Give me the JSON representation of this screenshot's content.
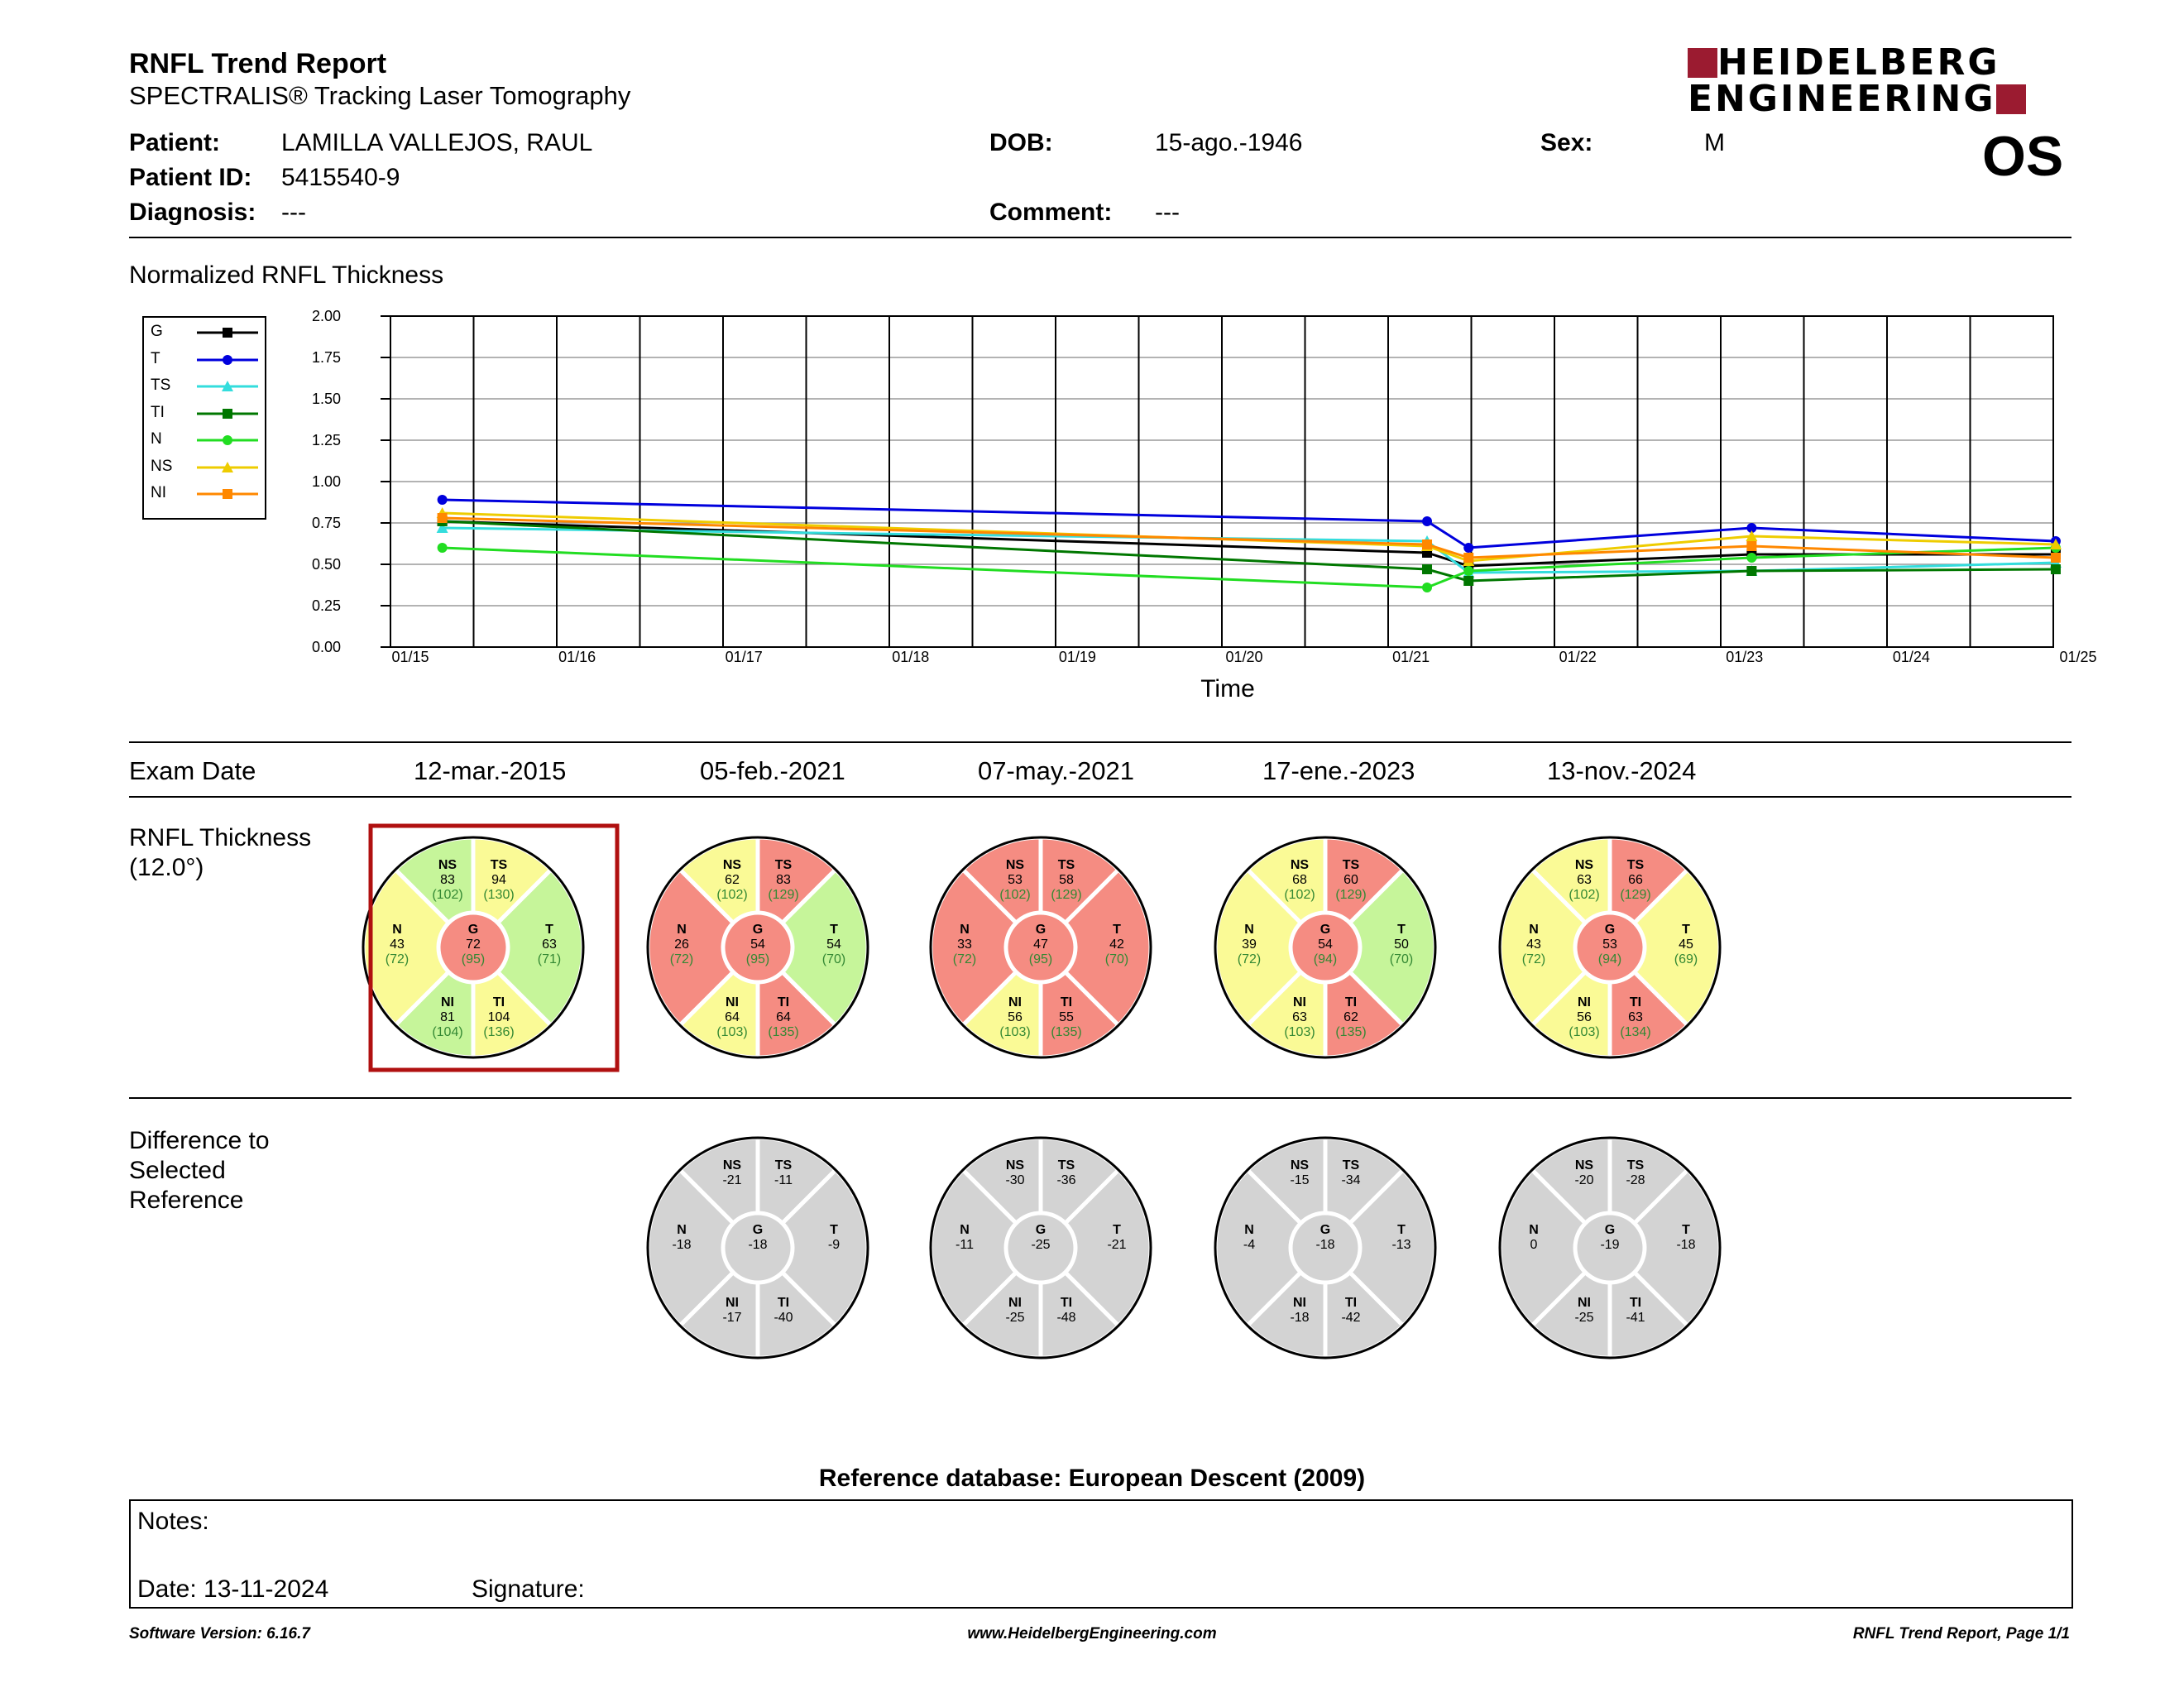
{
  "header": {
    "title": "RNFL Trend Report",
    "subtitle": "SPECTRALIS® Tracking Laser Tomography",
    "logo_line1": "HEIDELBERG",
    "logo_line2": "ENGINEERING",
    "eye": "OS"
  },
  "patient": {
    "patient_label": "Patient:",
    "patient_value": "LAMILLA VALLEJOS, RAUL",
    "id_label": "Patient ID:",
    "id_value": "5415540-9",
    "diag_label": "Diagnosis:",
    "diag_value": "---",
    "dob_label": "DOB:",
    "dob_value": "15-ago.-1946",
    "comment_label": "Comment:",
    "comment_value": "---",
    "sex_label": "Sex:",
    "sex_value": "M"
  },
  "chart_title": "Normalized RNFL Thickness",
  "chart_data": {
    "type": "line",
    "xlabel": "Time",
    "ylabel": "",
    "ylim": [
      0,
      2
    ],
    "yticks": [
      "0.00",
      "0.25",
      "0.50",
      "0.75",
      "1.00",
      "1.25",
      "1.50",
      "1.75",
      "2.00"
    ],
    "xticks": [
      "01/15",
      "01/16",
      "01/17",
      "01/18",
      "01/19",
      "01/20",
      "01/21",
      "01/22",
      "01/23",
      "01/24",
      "01/25"
    ],
    "x_dates": [
      "2015-03-12",
      "2021-02-05",
      "2021-05-07",
      "2023-01-17",
      "2024-11-13"
    ],
    "legend_position": "top-left",
    "grid": true,
    "series": [
      {
        "name": "G",
        "color": "#000000",
        "marker": "square",
        "values": [
          0.76,
          0.57,
          0.49,
          0.56,
          0.56
        ]
      },
      {
        "name": "T",
        "color": "#0000dd",
        "marker": "circle",
        "values": [
          0.89,
          0.76,
          0.6,
          0.72,
          0.64
        ]
      },
      {
        "name": "TS",
        "color": "#33dddd",
        "marker": "triangle",
        "values": [
          0.72,
          0.64,
          0.45,
          0.46,
          0.51
        ]
      },
      {
        "name": "TI",
        "color": "#007700",
        "marker": "square",
        "values": [
          0.76,
          0.47,
          0.4,
          0.46,
          0.47
        ]
      },
      {
        "name": "N",
        "color": "#22dd22",
        "marker": "circle",
        "values": [
          0.6,
          0.36,
          0.46,
          0.54,
          0.6
        ]
      },
      {
        "name": "NS",
        "color": "#eecc00",
        "marker": "triangle",
        "values": [
          0.81,
          0.61,
          0.52,
          0.67,
          0.62
        ]
      },
      {
        "name": "NI",
        "color": "#ff8800",
        "marker": "square",
        "values": [
          0.78,
          0.62,
          0.54,
          0.61,
          0.54
        ]
      }
    ]
  },
  "exam": {
    "label": "Exam Date",
    "dates": [
      "12-mar.-2015",
      "05-feb.-2021",
      "07-may.-2021",
      "17-ene.-2023",
      "13-nov.-2024"
    ]
  },
  "thickness": {
    "label1": "RNFL Thickness",
    "label2": "(12.0°)",
    "circles": [
      {
        "NS": [
          "83",
          "(102)",
          "g"
        ],
        "TS": [
          "94",
          "(130)",
          "y"
        ],
        "N": [
          "43",
          "(72)",
          "y"
        ],
        "G": [
          "72",
          "(95)",
          "r"
        ],
        "T": [
          "63",
          "(71)",
          "g"
        ],
        "NI": [
          "81",
          "(104)",
          "g"
        ],
        "TI": [
          "104",
          "(136)",
          "y"
        ]
      },
      {
        "NS": [
          "62",
          "(102)",
          "y"
        ],
        "TS": [
          "83",
          "(129)",
          "r"
        ],
        "N": [
          "26",
          "(72)",
          "r"
        ],
        "G": [
          "54",
          "(95)",
          "r"
        ],
        "T": [
          "54",
          "(70)",
          "g"
        ],
        "NI": [
          "64",
          "(103)",
          "y"
        ],
        "TI": [
          "64",
          "(135)",
          "r"
        ]
      },
      {
        "NS": [
          "53",
          "(102)",
          "r"
        ],
        "TS": [
          "58",
          "(129)",
          "r"
        ],
        "N": [
          "33",
          "(72)",
          "r"
        ],
        "G": [
          "47",
          "(95)",
          "r"
        ],
        "T": [
          "42",
          "(70)",
          "r"
        ],
        "NI": [
          "56",
          "(103)",
          "y"
        ],
        "TI": [
          "55",
          "(135)",
          "r"
        ]
      },
      {
        "NS": [
          "68",
          "(102)",
          "y"
        ],
        "TS": [
          "60",
          "(129)",
          "r"
        ],
        "N": [
          "39",
          "(72)",
          "y"
        ],
        "G": [
          "54",
          "(94)",
          "r"
        ],
        "T": [
          "50",
          "(70)",
          "g"
        ],
        "NI": [
          "63",
          "(103)",
          "y"
        ],
        "TI": [
          "62",
          "(135)",
          "r"
        ]
      },
      {
        "NS": [
          "63",
          "(102)",
          "y"
        ],
        "TS": [
          "66",
          "(129)",
          "r"
        ],
        "N": [
          "43",
          "(72)",
          "y"
        ],
        "G": [
          "53",
          "(94)",
          "r"
        ],
        "T": [
          "45",
          "(69)",
          "y"
        ],
        "NI": [
          "56",
          "(103)",
          "y"
        ],
        "TI": [
          "63",
          "(134)",
          "r"
        ]
      }
    ]
  },
  "difference": {
    "label1": "Difference to",
    "label2": "Selected",
    "label3": "Reference",
    "circles": [
      {
        "NS": "-21",
        "TS": "-11",
        "N": "-18",
        "G": "-18",
        "T": "-9",
        "NI": "-17",
        "TI": "-40"
      },
      {
        "NS": "-30",
        "TS": "-36",
        "N": "-11",
        "G": "-25",
        "T": "-21",
        "NI": "-25",
        "TI": "-48"
      },
      {
        "NS": "-15",
        "TS": "-34",
        "N": "-4",
        "G": "-18",
        "T": "-13",
        "NI": "-18",
        "TI": "-42"
      },
      {
        "NS": "-20",
        "TS": "-28",
        "N": "0",
        "G": "-19",
        "T": "-18",
        "NI": "-25",
        "TI": "-41"
      }
    ]
  },
  "sector_labels": {
    "NS": "NS",
    "TS": "TS",
    "N": "N",
    "G": "G",
    "T": "T",
    "NI": "NI",
    "TI": "TI"
  },
  "colors": {
    "g": "#c6f59a",
    "y": "#fafa96",
    "r": "#f58c82",
    "gray": "#d3d3d3",
    "selected": "#b01010",
    "logo": "#9b1b30"
  },
  "reference_db": "Reference database: European Descent (2009)",
  "notes": {
    "label": "Notes:",
    "date": "Date: 13-11-2024",
    "signature": "Signature:"
  },
  "footer": {
    "left": "Software Version: 6.16.7",
    "center": "www.HeidelbergEngineering.com",
    "right": "RNFL Trend Report, Page 1/1"
  }
}
